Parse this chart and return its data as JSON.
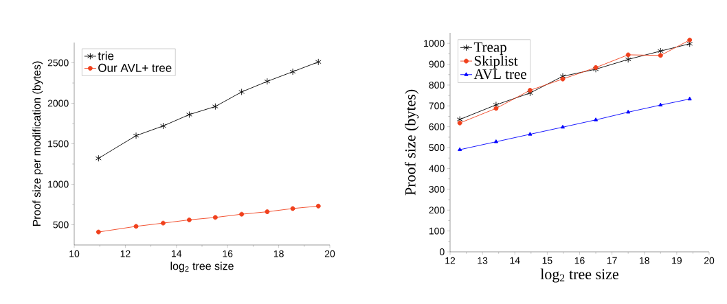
{
  "chart_data": [
    {
      "type": "line",
      "xlabel": "log$_{2}$ tree size",
      "ylabel": "Proof size per modification (bytes)",
      "x": [
        10.95,
        12.42,
        13.48,
        14.5,
        15.52,
        16.55,
        17.55,
        18.55,
        19.55
      ],
      "xlim": [
        10,
        20
      ],
      "xticks": [
        10,
        12,
        14,
        16,
        18,
        20
      ],
      "ylim": [
        250,
        2750
      ],
      "yticks": [
        500,
        1000,
        1500,
        2000,
        2500
      ],
      "legend": "top left",
      "series": [
        {
          "name": "trie",
          "color": "#000000",
          "marker": "cross",
          "values": [
            1320,
            1600,
            1720,
            1860,
            1960,
            2140,
            2270,
            2390,
            2510
          ]
        },
        {
          "name": "Our AVL+ tree",
          "color": "#f0401c",
          "marker": "circle",
          "values": [
            410,
            480,
            520,
            560,
            590,
            630,
            660,
            700,
            730
          ]
        }
      ]
    },
    {
      "type": "line",
      "xlabel": "log$_{2}$ tree  size",
      "ylabel": "Proof  size (bytes)",
      "x": [
        12.3,
        13.42,
        14.47,
        15.48,
        16.5,
        17.5,
        18.5,
        19.4
      ],
      "xlim": [
        12,
        20
      ],
      "xticks": [
        12,
        13,
        14,
        15,
        16,
        17,
        18,
        19,
        20
      ],
      "ylim": [
        0,
        1050
      ],
      "yticks": [
        0,
        100,
        200,
        300,
        400,
        500,
        600,
        700,
        800,
        900,
        1000
      ],
      "legend": "top left",
      "series": [
        {
          "name": "Treap",
          "color": "#000000",
          "marker": "cross",
          "values": [
            635,
            705,
            762,
            842,
            876,
            923,
            963,
            998
          ]
        },
        {
          "name": "Skiplist",
          "color": "#f0401c",
          "marker": "circle",
          "values": [
            618,
            688,
            775,
            829,
            884,
            945,
            942,
            1016
          ]
        },
        {
          "name": "AVL tree",
          "color": "#0000ff",
          "marker": "triangle",
          "values": [
            490,
            528,
            564,
            598,
            633,
            670,
            704,
            733
          ]
        }
      ]
    }
  ]
}
